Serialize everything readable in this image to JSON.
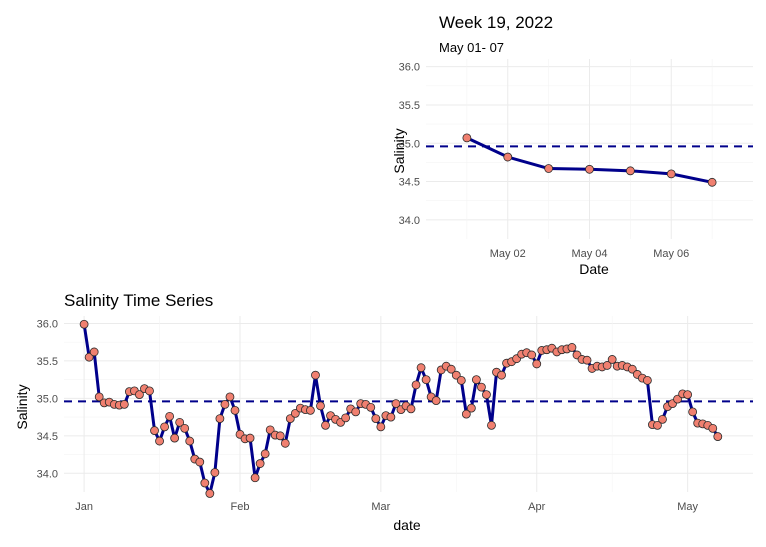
{
  "colors": {
    "line": "#00008b",
    "points": "#f08070",
    "ref_line": "#00008b",
    "grid": "#ebebeb"
  },
  "chart_data": [
    {
      "type": "line",
      "title": "Week 19, 2022",
      "subtitle": "May 01- 07",
      "xlabel": "Date",
      "ylabel": "Salinity",
      "x_ticks": [
        "May 02",
        "May 04",
        "May 06"
      ],
      "y_ticks": [
        "34.0",
        "34.5",
        "35.0",
        "35.5",
        "36.0"
      ],
      "ylim": [
        33.75,
        36.1
      ],
      "xlim": [
        "2022-04-30",
        "2022-05-08"
      ],
      "reference_line": 34.96,
      "grid": true,
      "series": [
        {
          "x": [
            "2022-05-01",
            "2022-05-02",
            "2022-05-03",
            "2022-05-04",
            "2022-05-05",
            "2022-05-06",
            "2022-05-07"
          ],
          "values": [
            35.07,
            34.82,
            34.67,
            34.66,
            34.64,
            34.6,
            34.49
          ]
        }
      ]
    },
    {
      "type": "line",
      "title": "Salinity Time Series",
      "xlabel": "date",
      "ylabel": "Salinity",
      "x_ticks": [
        "Jan",
        "Feb",
        "Mar",
        "Apr",
        "May"
      ],
      "y_ticks": [
        "34.0",
        "34.5",
        "35.0",
        "35.5",
        "36.0"
      ],
      "ylim": [
        33.75,
        36.1
      ],
      "xlim": [
        "2021-12-28",
        "2022-05-14"
      ],
      "reference_line": 34.96,
      "grid": true,
      "series": [
        {
          "x_start": "2022-01-01",
          "x_step_days": 1,
          "values": [
            35.99,
            35.55,
            35.62,
            35.02,
            34.94,
            34.95,
            34.92,
            34.91,
            34.92,
            35.09,
            35.1,
            35.05,
            35.13,
            35.1,
            34.57,
            34.43,
            34.62,
            34.76,
            34.47,
            34.68,
            34.6,
            34.43,
            34.19,
            34.15,
            33.87,
            33.73,
            34.01,
            34.73,
            34.92,
            35.02,
            34.84,
            34.52,
            34.46,
            34.47,
            33.94,
            34.13,
            34.26,
            34.58,
            34.51,
            34.5,
            34.4,
            34.73,
            34.8,
            34.87,
            34.85,
            34.84,
            35.31,
            34.9,
            34.64,
            34.77,
            34.72,
            34.68,
            34.74,
            34.86,
            34.82,
            34.93,
            34.92,
            34.88,
            34.73,
            34.62,
            34.77,
            34.75,
            34.93,
            34.85,
            34.9,
            34.86,
            35.18,
            35.41,
            35.25,
            35.02,
            34.97,
            35.38,
            35.43,
            35.39,
            35.31,
            35.24,
            34.79,
            34.87,
            35.25,
            35.15,
            35.05,
            34.64,
            35.35,
            35.31,
            35.47,
            35.49,
            35.53,
            35.59,
            35.61,
            35.58,
            35.46,
            35.64,
            35.65,
            35.67,
            35.62,
            35.65,
            35.66,
            35.68,
            35.58,
            35.52,
            35.51,
            35.4,
            35.43,
            35.42,
            35.44,
            35.52,
            35.43,
            35.44,
            35.42,
            35.39,
            35.32,
            35.27,
            35.24,
            34.65,
            34.64,
            34.72,
            34.89,
            34.93,
            34.99,
            35.06,
            35.05,
            34.82,
            34.67,
            34.66,
            34.64,
            34.6,
            34.49
          ]
        }
      ]
    }
  ]
}
